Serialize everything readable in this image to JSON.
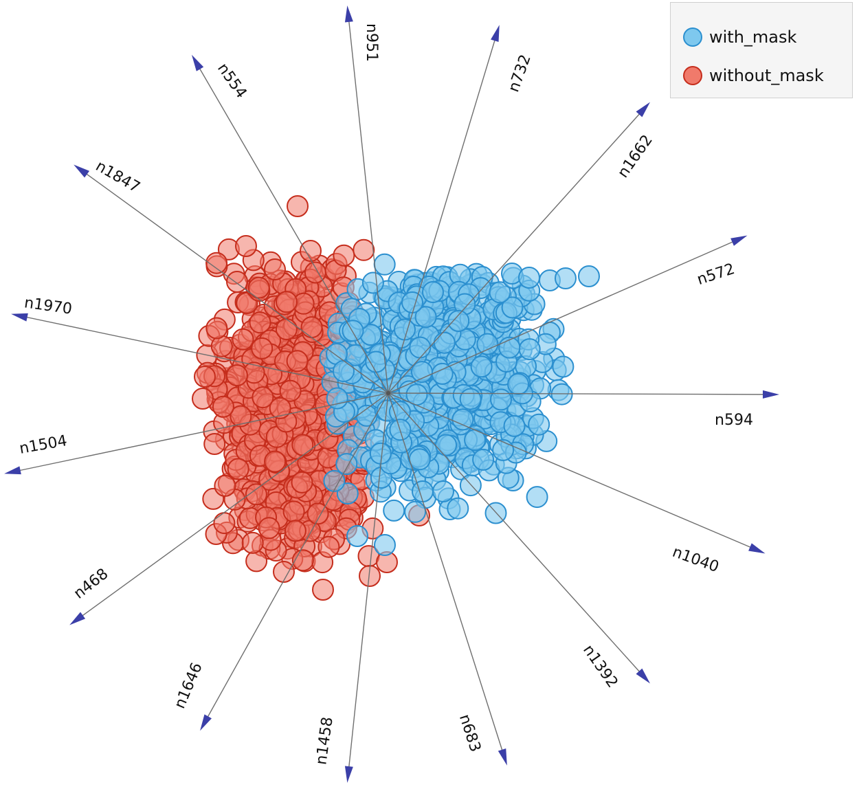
{
  "chart_data": {
    "type": "scatter",
    "title": "",
    "legend_position": "top-right",
    "anchors": [
      "n951",
      "n732",
      "n1662",
      "n572",
      "n594",
      "n1040",
      "n1392",
      "n683",
      "n1458",
      "n1646",
      "n468",
      "n1504",
      "n1970",
      "n1847",
      "n554"
    ],
    "series": [
      {
        "name": "with_mask",
        "color": "#7ec8ee",
        "stroke": "#2b8fcf"
      },
      {
        "name": "without_mask",
        "color": "#f07a6b",
        "stroke": "#c52d1c"
      }
    ]
  }
}
